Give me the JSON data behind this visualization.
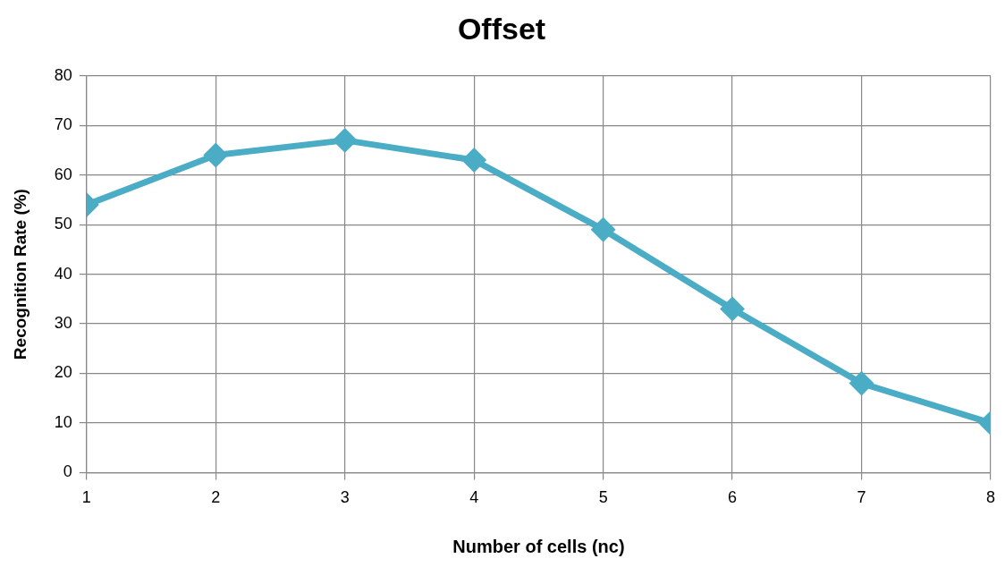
{
  "chart_data": {
    "type": "line",
    "title": "Offset",
    "xlabel": "Number of cells (nc)",
    "ylabel": "Recognition Rate (%)",
    "x": [
      1,
      2,
      3,
      4,
      5,
      6,
      7,
      8
    ],
    "series": [
      {
        "color": "#4bacc6",
        "values": [
          54,
          64,
          67,
          63,
          49,
          33,
          18,
          10
        ]
      }
    ],
    "xlim": [
      1,
      8
    ],
    "xticks": [
      1,
      2,
      3,
      4,
      5,
      6,
      7,
      8
    ],
    "ylim": [
      0,
      80
    ],
    "yticks": [
      0,
      10,
      20,
      30,
      40,
      50,
      60,
      70,
      80
    ],
    "grid": true,
    "legend": false,
    "marker": "diamond",
    "line_style": "solid"
  }
}
